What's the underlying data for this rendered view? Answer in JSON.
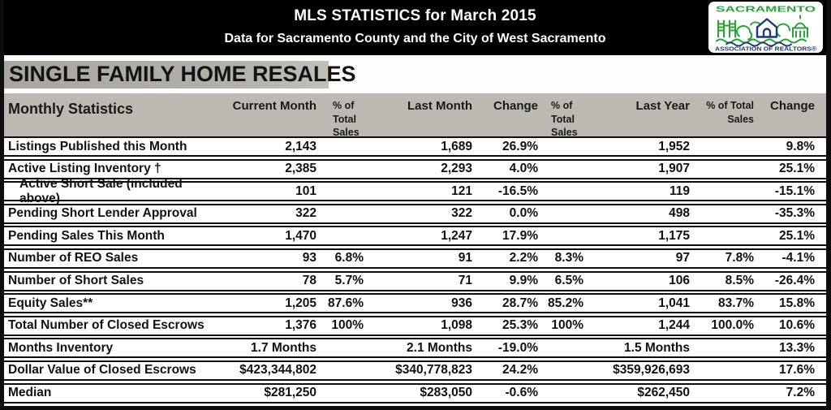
{
  "banner": {
    "title": "MLS STATISTICS for March 2015",
    "subtitle": "Data for Sacramento County and the City of West Sacramento"
  },
  "logo": {
    "name": "SACRAMENTO",
    "subtext": "ASSOCIATION OF REALTORS®"
  },
  "section_title": "SINGLE FAMILY HOME RESALES",
  "colors": {
    "banner_bg": "#000000",
    "banner_text": "#ffffff",
    "title_block_gray": "#b3afa9",
    "header_band_gray": "#bdb9b2",
    "row_bg": "#ffffff",
    "line_black": "#0d0d0d",
    "logo_green": "#2f9e3e",
    "logo_navy": "#1c3b6e"
  },
  "table": {
    "headers": {
      "label": "Monthly Statistics",
      "current_month": "Current Month",
      "pct1": [
        "% of",
        "Total",
        "Sales"
      ],
      "last_month": "Last Month",
      "change1": "Change",
      "pct2": [
        "% of",
        "Total",
        "Sales"
      ],
      "last_year": "Last Year",
      "pct3": [
        "% of  Total",
        "Sales"
      ],
      "change2": "Change"
    },
    "rows": [
      {
        "label": "Listings Published this Month",
        "indent": false,
        "cur": "2,143",
        "cur_pct": "",
        "lm": "1,689",
        "lm_chg": "26.9%",
        "lm_pct": "",
        "ly": "1,952",
        "ly_pct": "",
        "ly_chg": "9.8%"
      },
      {
        "label": "Active Listing Inventory †",
        "indent": false,
        "cur": "2,385",
        "cur_pct": "",
        "lm": "2,293",
        "lm_chg": "4.0%",
        "lm_pct": "",
        "ly": "1,907",
        "ly_pct": "",
        "ly_chg": "25.1%"
      },
      {
        "label": "Active Short Sale (included above)",
        "indent": true,
        "cur": "101",
        "cur_pct": "",
        "lm": "121",
        "lm_chg": "-16.5%",
        "lm_pct": "",
        "ly": "119",
        "ly_pct": "",
        "ly_chg": "-15.1%"
      },
      {
        "label": "Pending Short Lender Approval",
        "indent": false,
        "cur": "322",
        "cur_pct": "",
        "lm": "322",
        "lm_chg": "0.0%",
        "lm_pct": "",
        "ly": "498",
        "ly_pct": "",
        "ly_chg": "-35.3%"
      },
      {
        "label": "Pending Sales This Month",
        "indent": false,
        "cur": "1,470",
        "cur_pct": "",
        "lm": "1,247",
        "lm_chg": "17.9%",
        "lm_pct": "",
        "ly": "1,175",
        "ly_pct": "",
        "ly_chg": "25.1%"
      },
      {
        "label": "Number of REO Sales",
        "indent": false,
        "cur": "93",
        "cur_pct": "6.8%",
        "lm": "91",
        "lm_chg": "2.2%",
        "lm_pct": "8.3%",
        "ly": "97",
        "ly_pct": "7.8%",
        "ly_chg": "-4.1%"
      },
      {
        "label": "Number of Short Sales",
        "indent": false,
        "cur": "78",
        "cur_pct": "5.7%",
        "lm": "71",
        "lm_chg": "9.9%",
        "lm_pct": "6.5%",
        "ly": "106",
        "ly_pct": "8.5%",
        "ly_chg": "-26.4%"
      },
      {
        "label": "Equity Sales**",
        "indent": false,
        "cur": "1,205",
        "cur_pct": "87.6%",
        "lm": "936",
        "lm_chg": "28.7%",
        "lm_pct": "85.2%",
        "ly": "1,041",
        "ly_pct": "83.7%",
        "ly_chg": "15.8%"
      },
      {
        "label": "Total Number of Closed Escrows",
        "indent": false,
        "cur": "1,376",
        "cur_pct": "100%",
        "lm": "1,098",
        "lm_chg": "25.3%",
        "lm_pct": "100%",
        "ly": "1,244",
        "ly_pct": "100.0%",
        "ly_chg": "10.6%"
      },
      {
        "label": "Months Inventory",
        "indent": false,
        "cur": "1.7 Months",
        "cur_pct": "",
        "lm": "2.1 Months",
        "lm_chg": "-19.0%",
        "lm_pct": "",
        "ly": "1.5 Months",
        "ly_pct": "",
        "ly_chg": "13.3%"
      },
      {
        "label": "Dollar Value of Closed Escrows",
        "indent": false,
        "cur": "$423,344,802",
        "cur_pct": "",
        "lm": "$340,778,823",
        "lm_chg": "24.2%",
        "lm_pct": "",
        "ly": "$359,926,693",
        "ly_pct": "",
        "ly_chg": "17.6%"
      },
      {
        "label": "Median",
        "indent": false,
        "cur": "$281,250",
        "cur_pct": "",
        "lm": "$283,050",
        "lm_chg": "-0.6%",
        "lm_pct": "",
        "ly": "$262,450",
        "ly_pct": "",
        "ly_chg": "7.2%"
      }
    ]
  }
}
